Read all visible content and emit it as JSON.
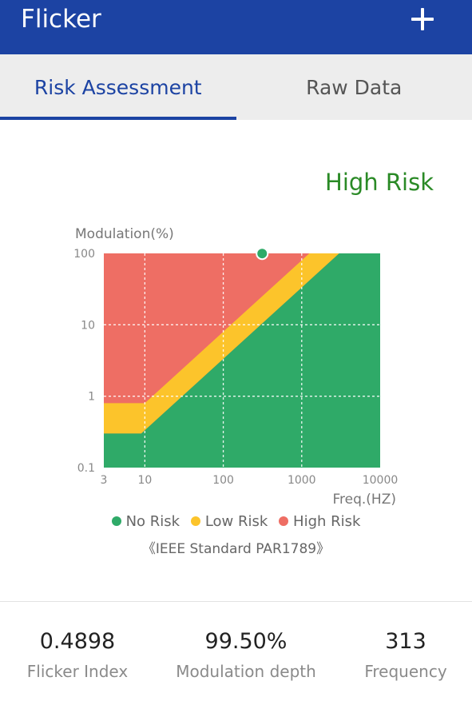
{
  "app": {
    "title": "Flicker"
  },
  "tabs": [
    {
      "label": "Risk Assessment",
      "active": true
    },
    {
      "label": "Raw Data",
      "active": false
    }
  ],
  "risk_result": {
    "label": "High Risk",
    "color": "#2a8a26"
  },
  "chart_data": {
    "type": "scatter",
    "xlabel": "Freq.(HZ)",
    "ylabel": "Modulation(%)",
    "x_scale": "log",
    "y_scale": "log",
    "xlim": [
      3,
      10000
    ],
    "ylim": [
      0.1,
      100
    ],
    "x_ticks": [
      "3",
      "10",
      "100",
      "1000",
      "10000"
    ],
    "y_ticks": [
      "100",
      "10",
      "1",
      "0.1"
    ],
    "grid": true,
    "regions": [
      {
        "name": "No Risk",
        "color": "#2faa68"
      },
      {
        "name": "Low Risk",
        "color": "#fcc42b"
      },
      {
        "name": "High Risk",
        "color": "#ee6e64"
      }
    ],
    "points": [
      {
        "x": 313,
        "y": 99.5
      }
    ]
  },
  "legend": [
    {
      "label": "No Risk",
      "color": "#2faa68"
    },
    {
      "label": "Low Risk",
      "color": "#fcc42b"
    },
    {
      "label": "High Risk",
      "color": "#ee6e64"
    }
  ],
  "standard": "《IEEE Standard PAR1789》",
  "stats": [
    {
      "value": "0.4898",
      "label": "Flicker Index"
    },
    {
      "value": "99.50%",
      "label": "Modulation depth"
    },
    {
      "value": "313",
      "label": "Frequency"
    }
  ],
  "icons": {
    "add": "plus-icon"
  }
}
